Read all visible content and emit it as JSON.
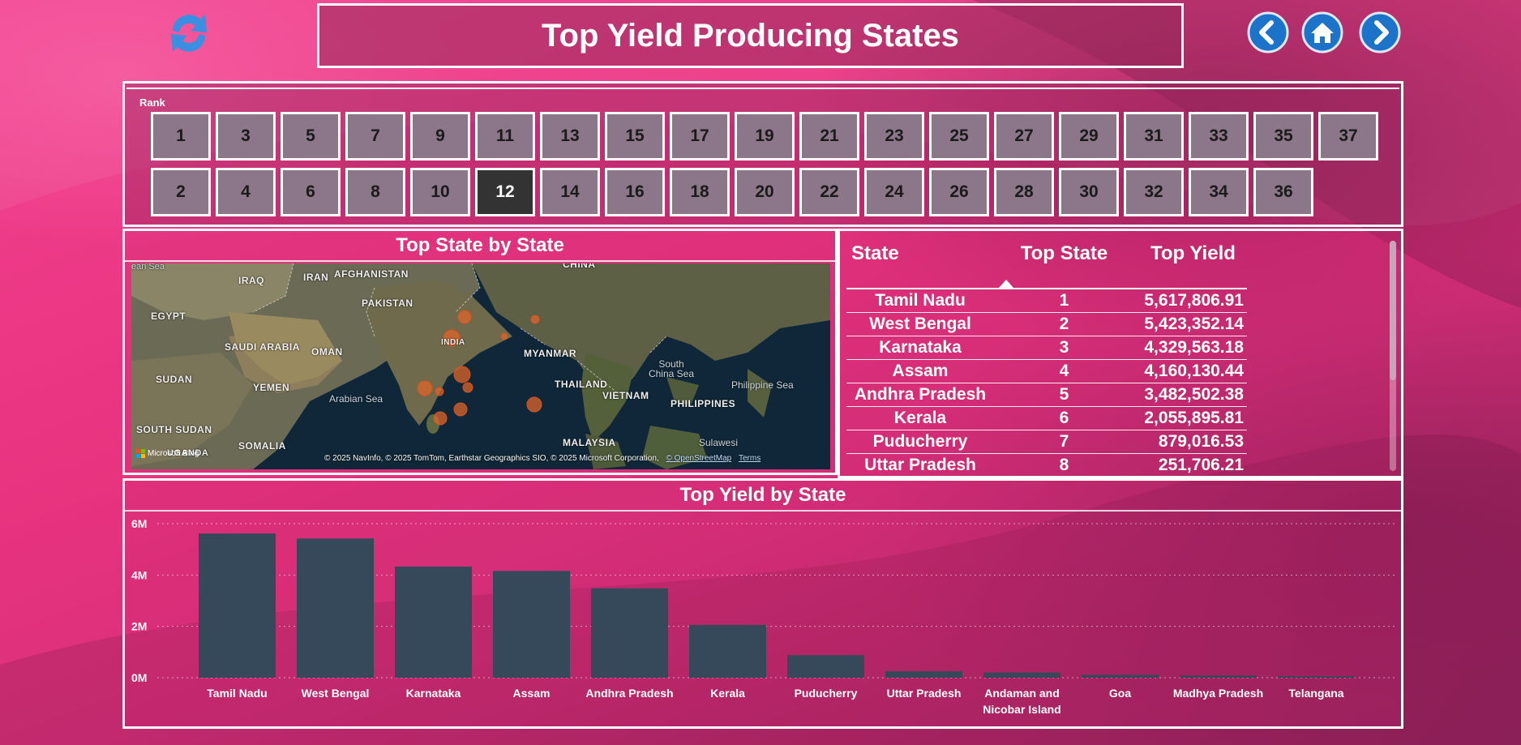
{
  "header": {
    "title": "Top Yield Producing States",
    "refresh_icon": "refresh-icon",
    "nav": {
      "back_icon": "chevron-left-icon",
      "home_icon": "home-icon",
      "forward_icon": "chevron-right-icon"
    }
  },
  "slicer": {
    "label": "Rank",
    "top_row": [
      "1",
      "3",
      "5",
      "7",
      "9",
      "11",
      "13",
      "15",
      "17",
      "19",
      "21",
      "23",
      "25",
      "27",
      "29",
      "31",
      "33",
      "35",
      "37"
    ],
    "bottom_row": [
      "2",
      "4",
      "6",
      "8",
      "10",
      "12",
      "14",
      "16",
      "18",
      "20",
      "22",
      "24",
      "26",
      "28",
      "30",
      "32",
      "34",
      "36"
    ],
    "selected": "12"
  },
  "map": {
    "title": "Top State by State",
    "labels": {
      "iraq": "IRAQ",
      "iran": "IRAN",
      "afghanistan": "AFGHANISTAN",
      "pakistan": "PAKISTAN",
      "china": "CHINA",
      "egypt": "EGYPT",
      "saudi": "SAUDI ARABIA",
      "oman": "OMAN",
      "india": "INDIA",
      "myanmar": "MYANMAR",
      "sudan": "SUDAN",
      "yemen": "YEMEN",
      "thailand": "THAILAND",
      "vietnam": "VIETNAM",
      "philippines": "PHILIPPINES",
      "south_sudan": "SOUTH SUDAN",
      "somalia": "SOMALIA",
      "uganda": "UGANDA",
      "malaysia": "MALAYSIA",
      "arabian_sea": "Arabian Sea",
      "south_china_sea": "South China Sea",
      "philippine_sea": "Philippine Sea",
      "sulawesi": "Sulawesi",
      "mean_sea": "ean Sea"
    },
    "attribution": "© 2025 NavInfo, © 2025 TomTom, Earthstar Geographics SIO, © 2025 Microsoft Corporation,",
    "attribution_link1": "© OpenStreetMap",
    "attribution_link2": "Terms",
    "bing": "Microsoft Bing"
  },
  "table": {
    "headers": {
      "state": "State",
      "top_state": "Top State",
      "top_yield": "Top Yield"
    },
    "rows": [
      {
        "state": "Tamil Nadu",
        "rank": "1",
        "yield": "5,617,806.91"
      },
      {
        "state": "West Bengal",
        "rank": "2",
        "yield": "5,423,352.14"
      },
      {
        "state": "Karnataka",
        "rank": "3",
        "yield": "4,329,563.18"
      },
      {
        "state": "Assam",
        "rank": "4",
        "yield": "4,160,130.44"
      },
      {
        "state": "Andhra Pradesh",
        "rank": "5",
        "yield": "3,482,502.38"
      },
      {
        "state": "Kerala",
        "rank": "6",
        "yield": "2,055,895.81"
      },
      {
        "state": "Puducherry",
        "rank": "7",
        "yield": "879,016.53"
      },
      {
        "state": "Uttar Pradesh",
        "rank": "8",
        "yield": "251,706.21"
      }
    ]
  },
  "chart_data": {
    "type": "bar",
    "title": "Top Yield by State",
    "xlabel": "",
    "ylabel": "",
    "categories": [
      "Tamil Nadu",
      "West Bengal",
      "Karnataka",
      "Assam",
      "Andhra Pradesh",
      "Kerala",
      "Puducherry",
      "Uttar Pradesh",
      "Andaman and Nicobar Island",
      "Goa",
      "Madhya Pradesh",
      "Telangana"
    ],
    "values": [
      5617806.91,
      5423352.14,
      4329563.18,
      4160130.44,
      3482502.38,
      2055895.81,
      879016.53,
      251706.21,
      200000,
      110000,
      85000,
      60000
    ],
    "yticks": [
      "0M",
      "2M",
      "4M",
      "6M"
    ],
    "ylim": [
      0,
      6000000
    ],
    "grid": true,
    "bar_color": "#36495a"
  }
}
